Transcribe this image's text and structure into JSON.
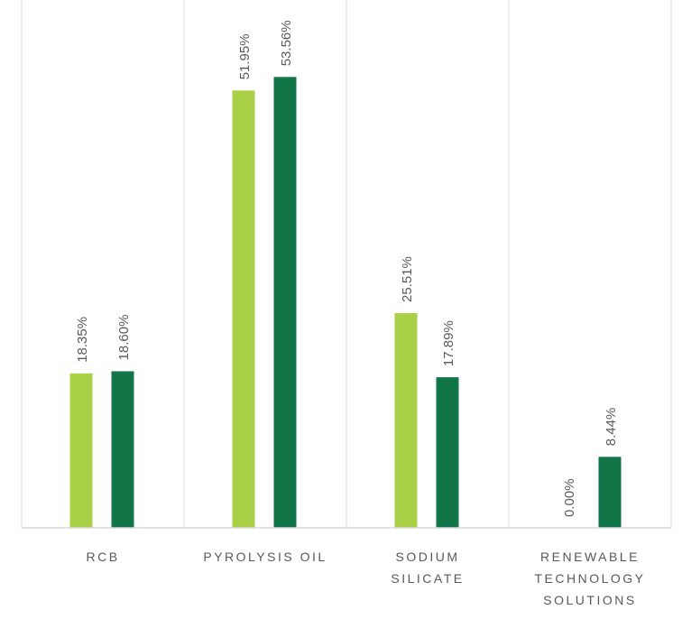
{
  "chart_data": {
    "type": "bar",
    "title": "",
    "xlabel": "",
    "ylabel": "",
    "ylim": [
      0,
      60
    ],
    "grid": false,
    "legend": "none",
    "categories": [
      [
        "RCB"
      ],
      [
        "PYROLYSIS OIL"
      ],
      [
        "SODIUM",
        "SILICATE"
      ],
      [
        "RENEWABLE",
        "TECHNOLOGY",
        "SOLUTIONS"
      ]
    ],
    "series": [
      {
        "color": "#a9d046",
        "values": [
          18.35,
          51.95,
          25.51,
          0.0
        ],
        "labels": [
          "18.35%",
          "51.95%",
          "25.51%",
          "0.00%"
        ]
      },
      {
        "color": "#127548",
        "values": [
          18.6,
          53.56,
          17.89,
          8.44
        ],
        "labels": [
          "18.60%",
          "53.56%",
          "17.89%",
          "8.44%"
        ]
      }
    ],
    "colors": {
      "axis": "#d9d9d9",
      "label_text": "#595959"
    }
  }
}
